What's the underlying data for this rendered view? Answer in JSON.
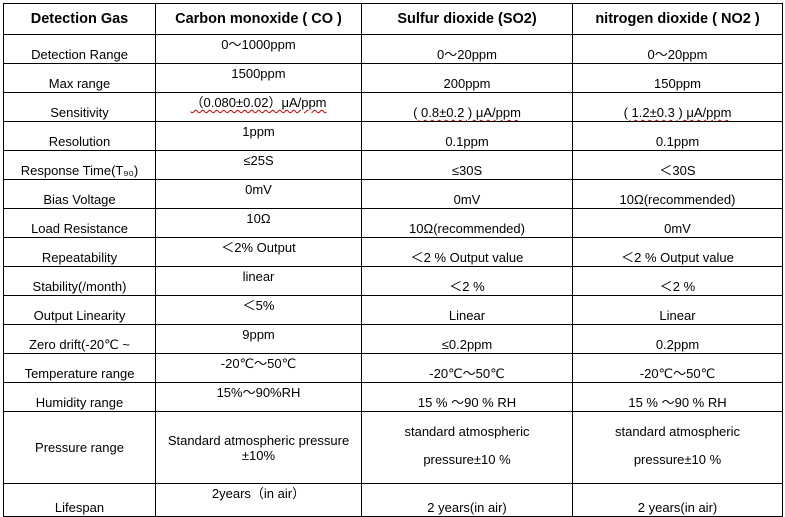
{
  "header": [
    "Detection Gas",
    "Carbon monoxide ( CO )",
    "Sulfur dioxide (SO2)",
    "nitrogen dioxide ( NO2 )"
  ],
  "rows": [
    {
      "label": "Detection Range",
      "co": "0～1000ppm",
      "so2": "0～20ppm",
      "no2": "0～20ppm"
    },
    {
      "label": "Max range",
      "co": "1500ppm",
      "so2": "200ppm",
      "no2": "150ppm"
    },
    {
      "label": "Sensitivity",
      "co": "（0.080±0.02）μA/ppm",
      "so2": "( 0.8±0.2 ) μA/ppm",
      "no2": "( 1.2±0.3 ) μA/ppm"
    },
    {
      "label": "Resolution",
      "co": "1ppm",
      "so2": "0.1ppm",
      "no2": "0.1ppm"
    },
    {
      "label": "Response Time(T₉₀)",
      "co": "≤25S",
      "so2": "≤30S",
      "no2": "＜30S"
    },
    {
      "label": "Bias Voltage",
      "co": "0mV",
      "so2": "0mV",
      "no2": "10Ω(recommended)"
    },
    {
      "label": "Load Resistance",
      "co": "10Ω",
      "so2": "10Ω(recommended)",
      "no2": "0mV"
    },
    {
      "label": "Repeatability",
      "co": "＜2% Output",
      "so2": "＜2 % Output value",
      "no2": "＜2 % Output value"
    },
    {
      "label": "Stability(/month)",
      "co": "linear",
      "so2": "＜2 %",
      "no2": "＜2 %"
    },
    {
      "label": "Output Linearity",
      "co": "＜5%",
      "so2": "Linear",
      "no2": "Linear"
    },
    {
      "label": "Zero drift(-20℃ ~",
      "co": "9ppm",
      "so2": "≤0.2ppm",
      "no2": "0.2ppm"
    },
    {
      "label": "Temperature range",
      "co": "-20℃～50℃",
      "so2": "-20℃～50℃",
      "no2": "-20℃～50℃"
    },
    {
      "label": "Humidity range",
      "co": "15%～90%RH",
      "so2": "15 % ～90 % RH",
      "no2": "15 % ～90 % RH"
    }
  ],
  "pressure": {
    "label": "Pressure range",
    "co": "Standard atmospheric pressure ±10%",
    "so2_line1": "standard atmospheric",
    "so2_line2": "pressure±10 %",
    "no2_line1": "standard atmospheric",
    "no2_line2": "pressure±10 %"
  },
  "lifespan": {
    "label": "Lifespan",
    "co": "2years（in air）",
    "so2": "2 years(in air)",
    "no2": "2 years(in air)"
  }
}
